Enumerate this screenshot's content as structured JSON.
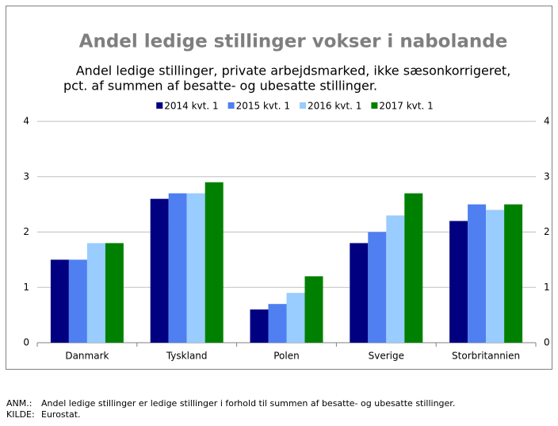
{
  "chart_data": {
    "type": "bar",
    "title": "Andel ledige stillinger vokser i nabolande",
    "subtitle": [
      "Andel ledige stillinger, private arbejdsmarked, ikke sæsonkorrigeret,",
      "pct. af summen af besatte- og ubesatte stillinger."
    ],
    "categories": [
      "Danmark",
      "Tyskland",
      "Polen",
      "Sverige",
      "Storbritannien"
    ],
    "series": [
      {
        "name": "2014 kvt. 1",
        "color": "#000080",
        "values": [
          1.5,
          2.6,
          0.6,
          1.8,
          2.2
        ]
      },
      {
        "name": "2015 kvt. 1",
        "color": "#4f7ff0",
        "values": [
          1.5,
          2.7,
          0.7,
          2.0,
          2.5
        ]
      },
      {
        "name": "2016 kvt. 1",
        "color": "#99ccff",
        "values": [
          1.8,
          2.7,
          0.9,
          2.3,
          2.4
        ]
      },
      {
        "name": "2017 kvt. 1",
        "color": "#008000",
        "values": [
          1.8,
          2.9,
          1.2,
          2.7,
          2.5
        ]
      }
    ],
    "ylim": [
      0,
      4
    ],
    "yticks": [
      0,
      1,
      2,
      3,
      4
    ],
    "y2lim": [
      0,
      4
    ],
    "y2ticks": [
      0,
      1,
      2,
      3,
      4
    ],
    "grid": true,
    "legend": "top",
    "notes": [
      {
        "label": "ANM.:",
        "text": "Andel ledige stillinger er ledige stillinger i forhold til summen af besatte- og ubesatte stillinger."
      },
      {
        "label": "KILDE:",
        "text": "Eurostat."
      }
    ]
  }
}
